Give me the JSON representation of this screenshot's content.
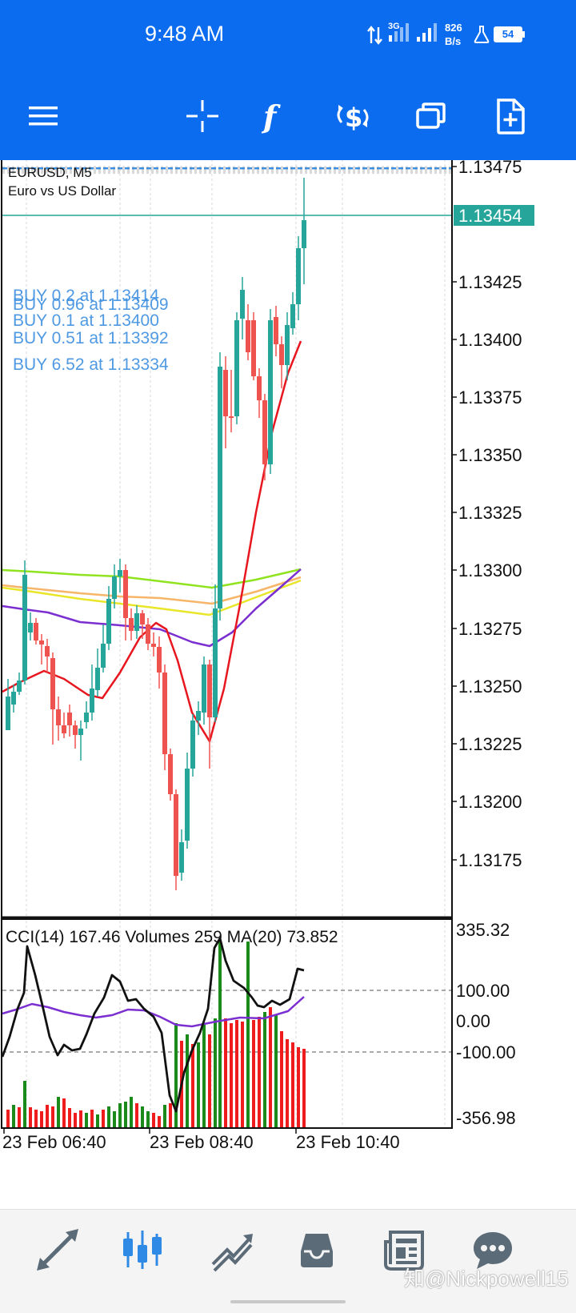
{
  "status_bar": {
    "time": "9:48 AM",
    "network": "3G",
    "speed_value": "826",
    "speed_unit": "B/s",
    "battery": "54"
  },
  "toolbar": {
    "icons": [
      "menu-icon",
      "crosshair-icon",
      "indicators-icon",
      "trade-icon",
      "window-icon",
      "new-order-icon"
    ]
  },
  "chart": {
    "symbol_line": "EURUSD, M5",
    "description": "Euro vs US Dollar",
    "current_price": "1.13454",
    "price_axis": [
      "1.13475",
      "1.13425",
      "1.13400",
      "1.13375",
      "1.13350",
      "1.13325",
      "1.13300",
      "1.13275",
      "1.13250",
      "1.13225",
      "1.13200",
      "1.13175"
    ],
    "order_labels": [
      "BUY 0.2 at 1.13414",
      "BUY 0.96 at 1.13409",
      "BUY 0.1 at 1.13400",
      "BUY 0.51 at 1.13392",
      "BUY 6.52 at 1.13334"
    ],
    "indicator_label": "CCI(14) 167.46 Volumes 259 MA(20) 73.852",
    "indicator_axis": [
      "335.32",
      "100.00",
      "0.00",
      "-100.00",
      "-356.98"
    ],
    "time_axis": [
      "23 Feb 06:40",
      "23 Feb 08:40",
      "23 Feb 10:40"
    ],
    "colors": {
      "bull": "#26a69a",
      "bear": "#ef5350",
      "bid_line": "#26a69a",
      "order_line": "#3d8fe0",
      "ma_red": "#e8161f",
      "ma_purple": "#7b2fd0",
      "ma_green": "#8fe31f",
      "ma_orange": "#f7b56a",
      "ma_yellow": "#e9e62a",
      "cci": "#111111",
      "vol_ma": "#7b2fd0",
      "vol_up": "#1a8a1a",
      "vol_down": "#ee1c1c"
    }
  },
  "bottom_nav": {
    "icons": [
      "quotes-icon",
      "chart-icon",
      "trade-icon",
      "history-icon",
      "news-icon",
      "chat-icon"
    ]
  },
  "watermark": "知@Nickpowell15"
}
